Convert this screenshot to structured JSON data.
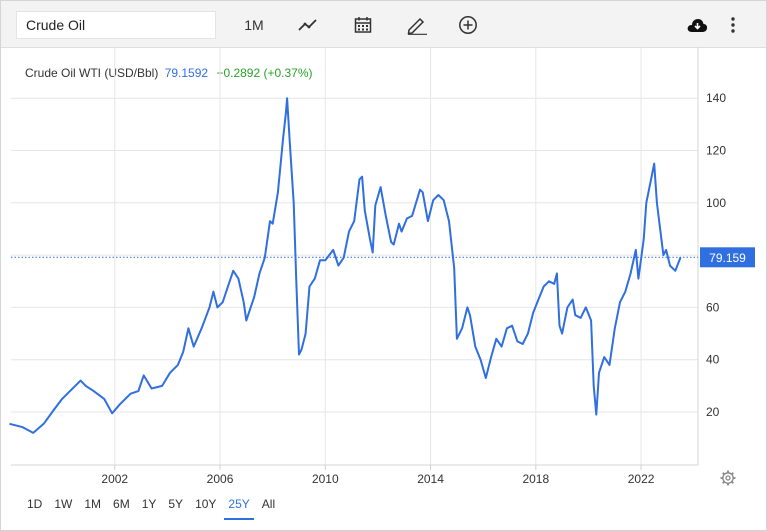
{
  "toolbar": {
    "search_value": "Crude Oil",
    "interval_label": "1M"
  },
  "legend": {
    "name": "Crude Oil WTI (USD/Bbl)",
    "price": "79.1592",
    "change": "+0.2892 (+0.37%)"
  },
  "current_value_label": "79.159",
  "ranges": [
    "1D",
    "1W",
    "1M",
    "6M",
    "1Y",
    "5Y",
    "10Y",
    "25Y",
    "All"
  ],
  "active_range": "25Y",
  "colors": {
    "line": "#2f6fe0",
    "positive": "#2aa12a",
    "grid": "#e6e6e6"
  },
  "chart_data": {
    "type": "line",
    "title": "",
    "xlabel": "",
    "ylabel": "",
    "x_ticks": [
      "2002",
      "2006",
      "2010",
      "2014",
      "2018",
      "2022"
    ],
    "y_ticks": [
      "20",
      "40",
      "60",
      "80",
      "100",
      "120",
      "140"
    ],
    "xlim": [
      1998.0,
      2023.65
    ],
    "ylim": [
      0,
      143
    ],
    "grid": true,
    "series": [
      {
        "points": [
          [
            1998.0,
            15.5
          ],
          [
            1998.5,
            14.2
          ],
          [
            1998.9,
            12
          ],
          [
            1999.3,
            15.5
          ],
          [
            1999.7,
            21
          ],
          [
            2000.0,
            25
          ],
          [
            2000.3,
            28
          ],
          [
            2000.7,
            32
          ],
          [
            2000.9,
            30
          ],
          [
            2001.2,
            28
          ],
          [
            2001.6,
            25
          ],
          [
            2001.9,
            19.5
          ],
          [
            2002.2,
            23
          ],
          [
            2002.6,
            27
          ],
          [
            2002.9,
            28
          ],
          [
            2003.1,
            34
          ],
          [
            2003.4,
            29
          ],
          [
            2003.8,
            30
          ],
          [
            2004.1,
            35
          ],
          [
            2004.4,
            38
          ],
          [
            2004.6,
            43
          ],
          [
            2004.8,
            52
          ],
          [
            2005.0,
            45
          ],
          [
            2005.3,
            52
          ],
          [
            2005.6,
            60
          ],
          [
            2005.75,
            66
          ],
          [
            2005.9,
            60
          ],
          [
            2006.1,
            62
          ],
          [
            2006.5,
            74
          ],
          [
            2006.7,
            71
          ],
          [
            2006.9,
            62
          ],
          [
            2007.0,
            55
          ],
          [
            2007.3,
            64
          ],
          [
            2007.5,
            73
          ],
          [
            2007.7,
            79
          ],
          [
            2007.9,
            93
          ],
          [
            2008.0,
            92
          ],
          [
            2008.2,
            104
          ],
          [
            2008.4,
            125
          ],
          [
            2008.5,
            134
          ],
          [
            2008.55,
            140
          ],
          [
            2008.65,
            123
          ],
          [
            2008.8,
            100
          ],
          [
            2008.9,
            70
          ],
          [
            2009.0,
            42
          ],
          [
            2009.1,
            44
          ],
          [
            2009.25,
            50
          ],
          [
            2009.4,
            68
          ],
          [
            2009.6,
            71
          ],
          [
            2009.8,
            78
          ],
          [
            2010.0,
            78
          ],
          [
            2010.3,
            82
          ],
          [
            2010.5,
            76
          ],
          [
            2010.7,
            79
          ],
          [
            2010.9,
            89
          ],
          [
            2011.1,
            93
          ],
          [
            2011.3,
            109
          ],
          [
            2011.4,
            110
          ],
          [
            2011.5,
            97
          ],
          [
            2011.7,
            86
          ],
          [
            2011.8,
            81
          ],
          [
            2011.9,
            99
          ],
          [
            2012.1,
            106
          ],
          [
            2012.3,
            95
          ],
          [
            2012.5,
            85
          ],
          [
            2012.6,
            84
          ],
          [
            2012.8,
            92
          ],
          [
            2012.9,
            89
          ],
          [
            2013.1,
            94
          ],
          [
            2013.3,
            95
          ],
          [
            2013.6,
            105
          ],
          [
            2013.7,
            104
          ],
          [
            2013.9,
            93
          ],
          [
            2014.1,
            101
          ],
          [
            2014.3,
            103
          ],
          [
            2014.5,
            101
          ],
          [
            2014.7,
            93
          ],
          [
            2014.9,
            75
          ],
          [
            2015.0,
            48
          ],
          [
            2015.2,
            52
          ],
          [
            2015.4,
            60
          ],
          [
            2015.5,
            57
          ],
          [
            2015.7,
            45
          ],
          [
            2015.9,
            40
          ],
          [
            2016.1,
            33
          ],
          [
            2016.3,
            41
          ],
          [
            2016.5,
            48
          ],
          [
            2016.7,
            45
          ],
          [
            2016.9,
            52
          ],
          [
            2017.1,
            53
          ],
          [
            2017.3,
            47
          ],
          [
            2017.5,
            46
          ],
          [
            2017.7,
            50
          ],
          [
            2017.9,
            58
          ],
          [
            2018.1,
            63
          ],
          [
            2018.3,
            68
          ],
          [
            2018.5,
            70
          ],
          [
            2018.7,
            69
          ],
          [
            2018.8,
            73
          ],
          [
            2018.9,
            53
          ],
          [
            2019.0,
            50
          ],
          [
            2019.2,
            60
          ],
          [
            2019.4,
            63
          ],
          [
            2019.5,
            57
          ],
          [
            2019.7,
            56
          ],
          [
            2019.9,
            60
          ],
          [
            2020.1,
            55
          ],
          [
            2020.2,
            30
          ],
          [
            2020.3,
            19
          ],
          [
            2020.4,
            35
          ],
          [
            2020.6,
            41
          ],
          [
            2020.8,
            38
          ],
          [
            2021.0,
            52
          ],
          [
            2021.2,
            62
          ],
          [
            2021.4,
            66
          ],
          [
            2021.6,
            73
          ],
          [
            2021.8,
            82
          ],
          [
            2021.9,
            71
          ],
          [
            2022.1,
            86
          ],
          [
            2022.2,
            100
          ],
          [
            2022.4,
            110
          ],
          [
            2022.5,
            115
          ],
          [
            2022.6,
            100
          ],
          [
            2022.75,
            88
          ],
          [
            2022.85,
            80
          ],
          [
            2022.95,
            82
          ],
          [
            2023.1,
            76
          ],
          [
            2023.3,
            74
          ],
          [
            2023.5,
            79.16
          ]
        ]
      }
    ],
    "last_value": 79.159
  }
}
